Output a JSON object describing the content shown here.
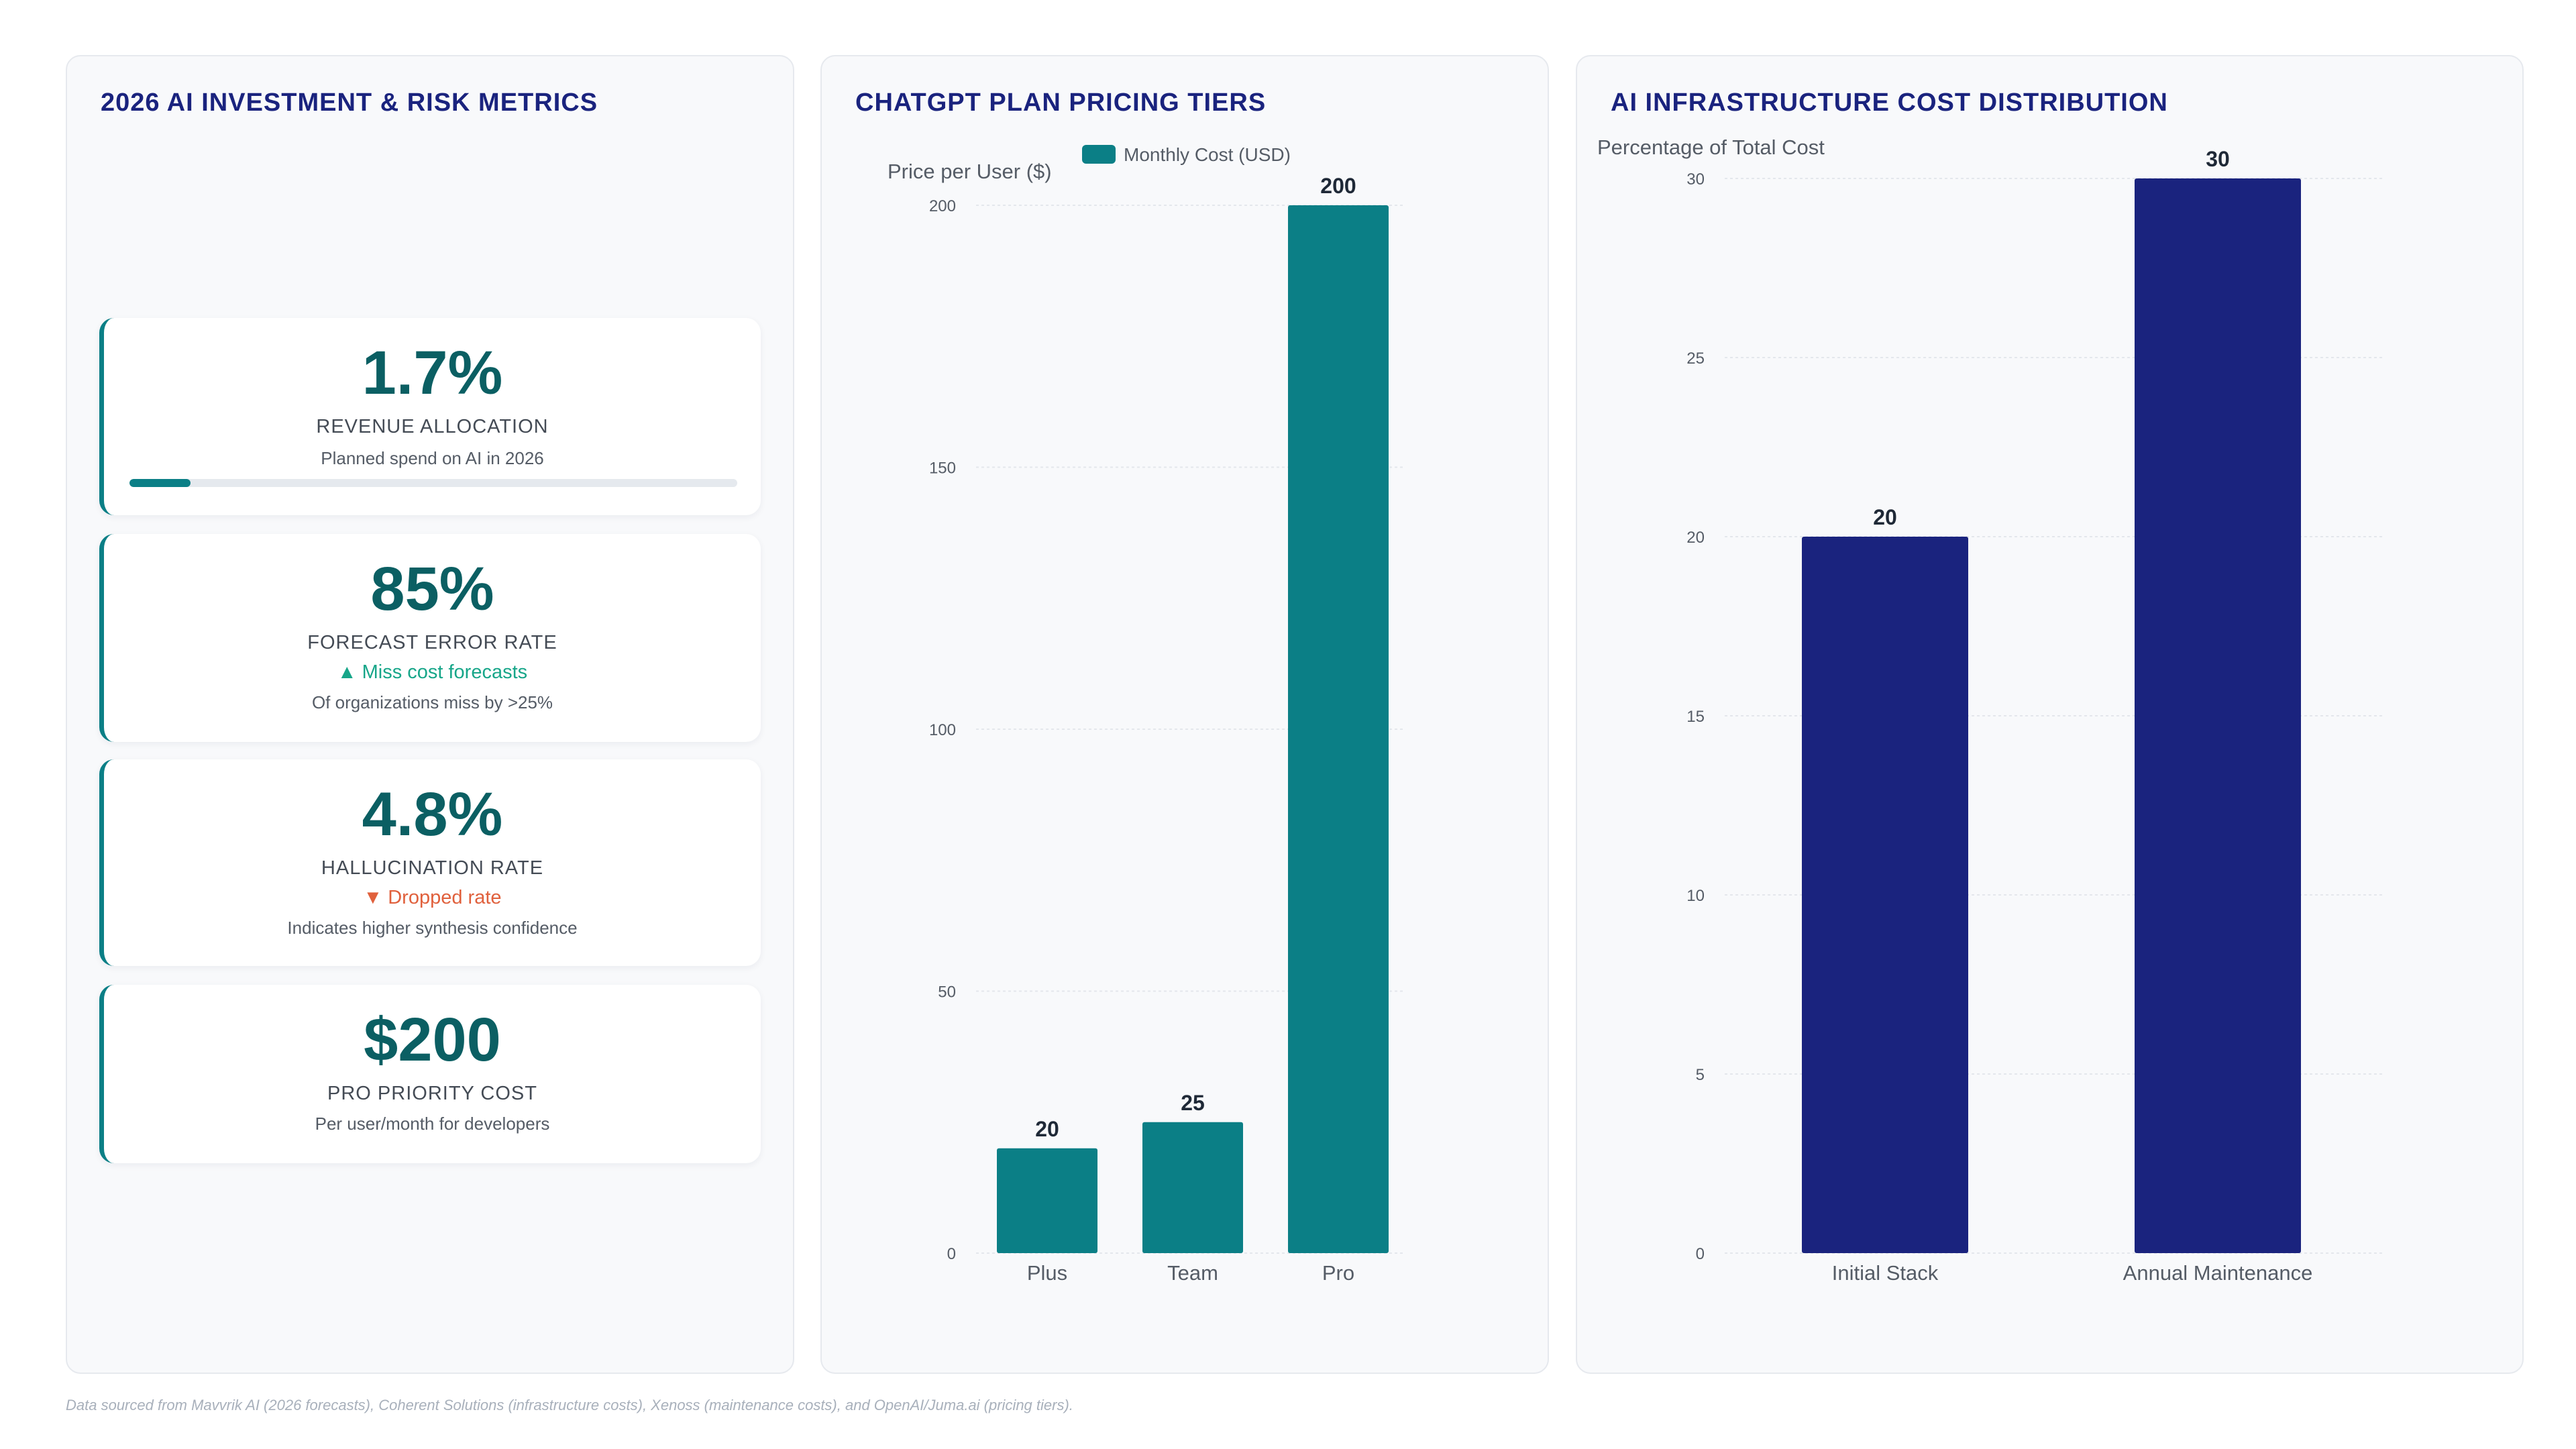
{
  "metrics_panel": {
    "title": "2026 AI INVESTMENT & RISK METRICS",
    "cards": [
      {
        "value": "1.7%",
        "label": "REVENUE ALLOCATION",
        "sub": "Planned spend on AI in 2026",
        "progress_fraction": 0.1
      },
      {
        "value": "85%",
        "label": "FORECAST ERROR RATE",
        "trend": "▲ Miss cost forecasts",
        "trend_color": "#17a689",
        "sub": "Of organizations miss by >25%"
      },
      {
        "value": "4.8%",
        "label": "HALLUCINATION RATE",
        "trend": "▼ Dropped rate",
        "trend_color": "#e0603c",
        "sub": "Indicates higher synthesis confidence"
      },
      {
        "value": "$200",
        "label": "PRO PRIORITY COST",
        "sub": "Per user/month for developers"
      }
    ]
  },
  "pricing_panel": {
    "title": "CHATGPT PLAN PRICING TIERS"
  },
  "infra_panel": {
    "title": "AI INFRASTRUCTURE COST DISTRIBUTION"
  },
  "footnote": "Data sourced from Mavvrik AI (2026 forecasts), Coherent Solutions (infrastructure costs), Xenoss (maintenance costs), and OpenAI/Juma.ai (pricing tiers).",
  "colors": {
    "teal": "#0b7f86",
    "navy": "#1a237e",
    "value_text": "#0b5f63"
  },
  "chart_data": [
    {
      "type": "bar",
      "categories": [
        "Plus",
        "Team",
        "Pro"
      ],
      "series": [
        {
          "name": "Monthly Cost (USD)",
          "values": [
            20,
            25,
            200
          ]
        }
      ],
      "ylabel": "Price per User ($)",
      "xlabel": "",
      "ylim": [
        0,
        200
      ],
      "yticks": [
        0,
        50,
        100,
        150,
        200
      ],
      "legend": "top-center",
      "grid": true,
      "color": "#0b7f86"
    },
    {
      "type": "bar",
      "categories": [
        "Initial Stack",
        "Annual Maintenance"
      ],
      "series": [
        {
          "values": [
            20,
            30
          ]
        }
      ],
      "ylabel": "Percentage of Total Cost",
      "xlabel": "",
      "ylim": [
        0,
        30
      ],
      "yticks": [
        0,
        5,
        10,
        15,
        20,
        25,
        30
      ],
      "legend": "none",
      "grid": true,
      "color": "#1a237e"
    }
  ]
}
